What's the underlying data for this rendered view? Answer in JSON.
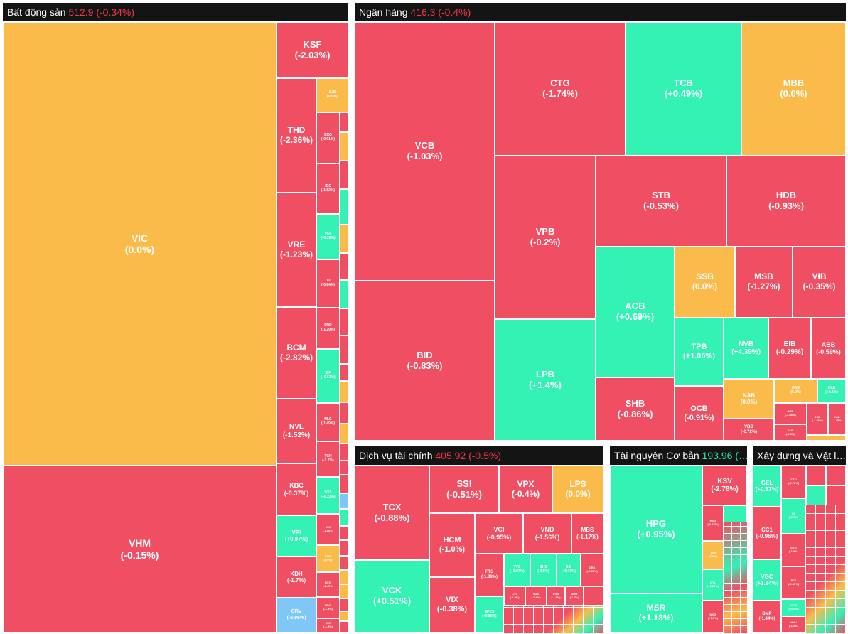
{
  "colors": {
    "down": "#f04e62",
    "up": "#33f2b4",
    "flat": "#fbbb4b",
    "floor": "#7fc7f7",
    "header_bg": "#141414",
    "header_neg": "#f23645",
    "header_pos": "#2ee8a6"
  },
  "sectors": {
    "bds": {
      "name": "Bất động sản",
      "value": "512.9 (-0.34%)"
    },
    "nh": {
      "name": "Ngân hàng",
      "value": "416.3 (-0.4%)"
    },
    "dvtc": {
      "name": "Dịch vụ tài chính",
      "value": "405.92 (-0.5%)"
    },
    "tnc": {
      "name": "Tài nguyên Cơ bản",
      "value": "193.96 (…"
    },
    "xd": {
      "name": "Xây dựng và Vật l…",
      "value": ""
    }
  },
  "tiles": {
    "VIC": {
      "sym": "VIC",
      "chg": "(0.0%)"
    },
    "VHM": {
      "sym": "VHM",
      "chg": "(-0.15%)"
    },
    "KSF": {
      "sym": "KSF",
      "chg": "(-2.03%)"
    },
    "THD": {
      "sym": "THD",
      "chg": "(-2.36%)"
    },
    "VRE": {
      "sym": "VRE",
      "chg": "(-1.23%)"
    },
    "BCM": {
      "sym": "BCM",
      "chg": "(-2.82%)"
    },
    "NVL": {
      "sym": "NVL",
      "chg": "(-1.52%)"
    },
    "KBC": {
      "sym": "KBC",
      "chg": "(-0.37%)"
    },
    "VPI": {
      "sym": "VPI",
      "chg": "(+0.97%)"
    },
    "KDH": {
      "sym": "KDH",
      "chg": "(-1.7%)"
    },
    "CRV": {
      "sym": "CRV",
      "chg": "(-6.96%)"
    },
    "SJS": {
      "sym": "SJS",
      "chg": "(0.0%)"
    },
    "BXG": {
      "sym": "BXG",
      "chg": "(-0.91%)"
    },
    "IDC": {
      "sym": "IDC",
      "chg": "(-1.52%)"
    },
    "VEF": {
      "sym": "VEF",
      "chg": "(+0.28%)"
    },
    "TAL": {
      "sym": "TAL",
      "chg": "(-0.64%)"
    },
    "PDR": {
      "sym": "PDR",
      "chg": "(-1.29%)"
    },
    "SIP": {
      "sym": "SIP",
      "chg": "(+0.61%)"
    },
    "NLG": {
      "sym": "NLG",
      "chg": "(-1.49%)"
    },
    "TCH": {
      "sym": "TCH",
      "chg": "(-1.7%)"
    },
    "DXS": {
      "sym": "DXS",
      "chg": "(+0.23%)"
    },
    "DIG": {
      "sym": "DIG",
      "chg": "(-1.88%)"
    },
    "KOS": {
      "sym": "KOS",
      "chg": "(0.0%)"
    },
    "DXG": {
      "sym": "DXG",
      "chg": "(-1.49%)"
    },
    "HDG": {
      "sym": "HDG",
      "chg": "(-1.8%)"
    },
    "DIC": {
      "sym": "DIC",
      "chg": "(-1.5%)"
    },
    "VCB": {
      "sym": "VCB",
      "chg": "(-1.03%)"
    },
    "BID": {
      "sym": "BID",
      "chg": "(-0.83%)"
    },
    "CTG": {
      "sym": "CTG",
      "chg": "(-1.74%)"
    },
    "TCB": {
      "sym": "TCB",
      "chg": "(+0.49%)"
    },
    "MBB": {
      "sym": "MBB",
      "chg": "(0.0%)"
    },
    "VPB": {
      "sym": "VPB",
      "chg": "(-0.2%)"
    },
    "STB": {
      "sym": "STB",
      "chg": "(-0.53%)"
    },
    "HDB": {
      "sym": "HDB",
      "chg": "(-0.93%)"
    },
    "LPB": {
      "sym": "LPB",
      "chg": "(+1.4%)"
    },
    "ACB": {
      "sym": "ACB",
      "chg": "(+0.69%)"
    },
    "SSB": {
      "sym": "SSB",
      "chg": "(0.0%)"
    },
    "MSB": {
      "sym": "MSB",
      "chg": "(-1.27%)"
    },
    "VIB": {
      "sym": "VIB",
      "chg": "(-0.35%)"
    },
    "TPB": {
      "sym": "TPB",
      "chg": "(+1.05%)"
    },
    "NVB": {
      "sym": "NVB",
      "chg": "(+4.39%)"
    },
    "EIB": {
      "sym": "EIB",
      "chg": "(-0.29%)"
    },
    "ABB": {
      "sym": "ABB",
      "chg": "(-0.59%)"
    },
    "SHB": {
      "sym": "SHB",
      "chg": "(-0.86%)"
    },
    "OCB": {
      "sym": "OCB",
      "chg": "(-0.91%)"
    },
    "NAB": {
      "sym": "NAB",
      "chg": "(0.0%)"
    },
    "BAB": {
      "sym": "BAB",
      "chg": "(0.0%)"
    },
    "KLB": {
      "sym": "KLB",
      "chg": "(+0.4%)"
    },
    "PGB": {
      "sym": "PGB",
      "chg": "(-1.88%)"
    },
    "SGB": {
      "sym": "SGB",
      "chg": "(-1.28%)"
    },
    "VAB": {
      "sym": "VAB",
      "chg": "(-1.25%)"
    },
    "VBB": {
      "sym": "VBB",
      "chg": "(-2.72%)"
    },
    "TAB": {
      "sym": "TAB",
      "chg": "(-0.8%)"
    },
    "TCX": {
      "sym": "TCX",
      "chg": "(-0.88%)"
    },
    "VCK": {
      "sym": "VCK",
      "chg": "(+0.51%)"
    },
    "SSI": {
      "sym": "SSI",
      "chg": "(-0.51%)"
    },
    "VPX": {
      "sym": "VPX",
      "chg": "(-0.4%)"
    },
    "LPS": {
      "sym": "LPS",
      "chg": "(0.0%)"
    },
    "HCM": {
      "sym": "HCM",
      "chg": "(-1.0%)"
    },
    "VCI": {
      "sym": "VCI",
      "chg": "(-0.95%)"
    },
    "VND": {
      "sym": "VND",
      "chg": "(-1.56%)"
    },
    "MBS": {
      "sym": "MBS",
      "chg": "(-1.17%)"
    },
    "VIX": {
      "sym": "VIX",
      "chg": "(-0.38%)"
    },
    "FTS": {
      "sym": "FTS",
      "chg": "(-1.38%)"
    },
    "TVS": {
      "sym": "TVS",
      "chg": "(+2.07%)"
    },
    "SHS": {
      "sym": "SHS",
      "chg": "(-4.5%)"
    },
    "BSI": {
      "sym": "BSI",
      "chg": "(+0.43%)"
    },
    "ORS": {
      "sym": "ORS",
      "chg": "(-0.36%)"
    },
    "SPCS": {
      "sym": "SPCS",
      "chg": "(+0.86%)"
    },
    "CTS": {
      "sym": "CTS",
      "chg": "(-1.0%)"
    },
    "VDS": {
      "sym": "VDS",
      "chg": "(-1.4%)"
    },
    "EVS": {
      "sym": "EVS",
      "chg": "(-1.8%)"
    },
    "AGR": {
      "sym": "AGR",
      "chg": "(-1.7%)"
    },
    "HPG": {
      "sym": "HPG",
      "chg": "(+0.95%)"
    },
    "MSR": {
      "sym": "MSR",
      "chg": "(+1.18%)"
    },
    "KSV": {
      "sym": "KSV",
      "chg": "(-2.78%)"
    },
    "HSG": {
      "sym": "HSG",
      "chg": "(-0.47%)"
    },
    "TVN": {
      "sym": "TVN",
      "chg": "(0.0%)"
    },
    "DTL": {
      "sym": "DTL",
      "chg": "(+0.24%)"
    },
    "NKG": {
      "sym": "NKG",
      "chg": "(+1.2%)"
    },
    "GEL": {
      "sym": "GEL",
      "chg": "(+0.17%)"
    },
    "CC1": {
      "sym": "CC1",
      "chg": "(-0.96%)"
    },
    "VGC": {
      "sym": "VGC",
      "chg": "(+1.24%)"
    },
    "BMP": {
      "sym": "BMP",
      "chg": "(-1.44%)"
    },
    "CTD": {
      "sym": "CTD",
      "chg": "(-0.78%)"
    },
    "CII": {
      "sym": "CII",
      "chg": "(-0.7%)"
    },
    "SKG": {
      "sym": "SKG",
      "chg": "(-1.8%)"
    },
    "PC1": {
      "sym": "PC1",
      "chg": "(-0.53%)"
    },
    "VCG": {
      "sym": "VCG",
      "chg": "(+0.6%)"
    },
    "HHV": {
      "sym": "HHV",
      "chg": "(-1.2%)"
    }
  }
}
